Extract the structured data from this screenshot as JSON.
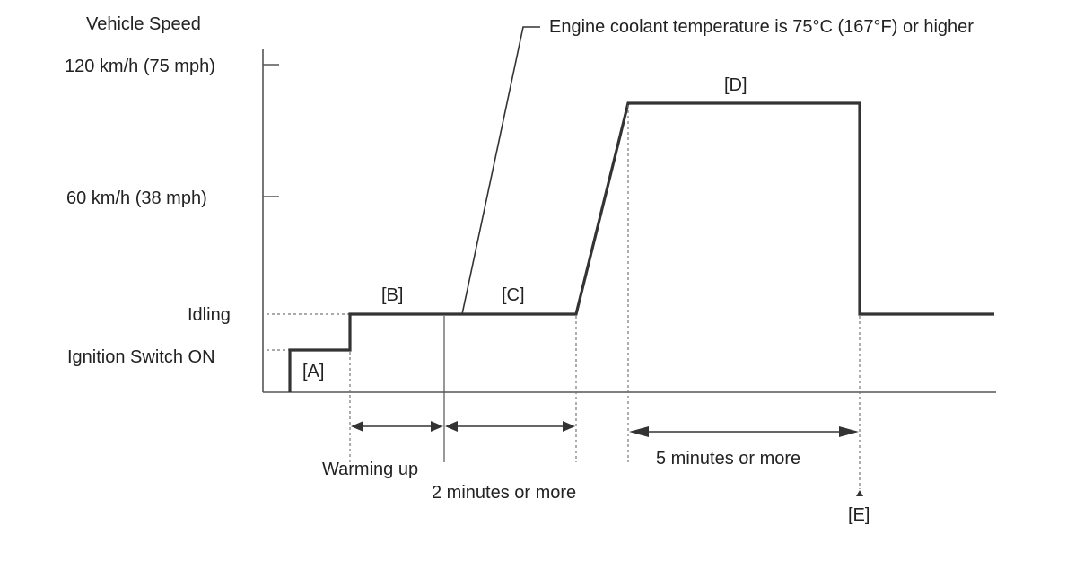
{
  "axis": {
    "title": "Vehicle Speed",
    "levels": {
      "speed_120": "120 km/h (75 mph)",
      "speed_60": "60 km/h (38 mph)",
      "idling": "Idling",
      "ignition_on": "Ignition Switch ON"
    }
  },
  "annotation": {
    "coolant": "Engine coolant temperature is 75°C (167°F) or higher"
  },
  "phases": {
    "a": "[A]",
    "b": "[B]",
    "c": "[C]",
    "d": "[D]",
    "e": "[E]"
  },
  "durations": {
    "warming_up": "Warming up",
    "two_minutes": "2 minutes or more",
    "five_minutes": "5 minutes or more"
  }
}
